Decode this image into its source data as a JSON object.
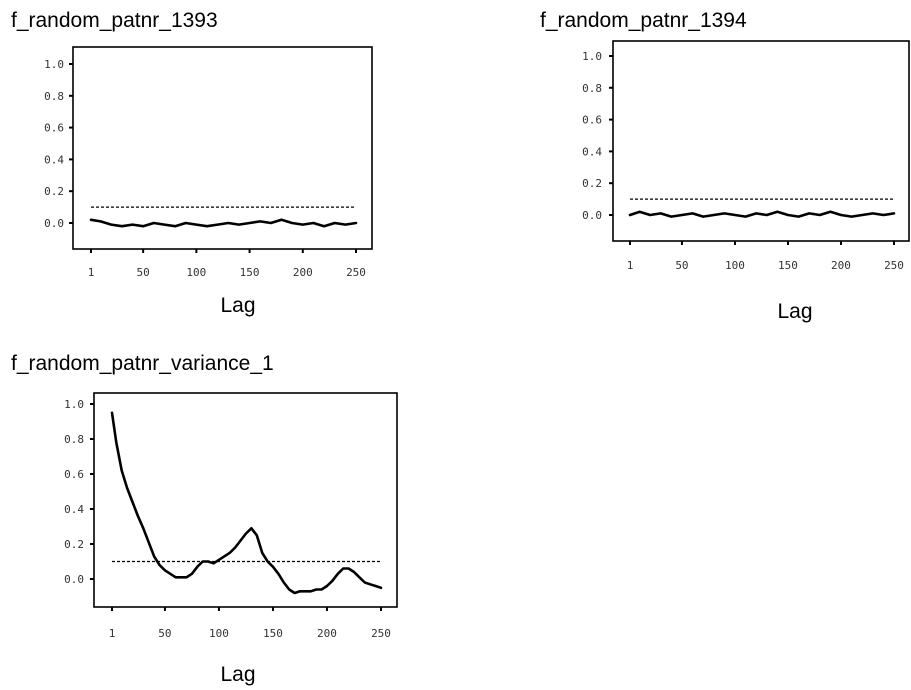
{
  "chart_data": [
    {
      "type": "line",
      "title": "f_random_patnr_1393",
      "xlabel": "Lag",
      "ylabel": "",
      "xlim": [
        1,
        250
      ],
      "ylim": [
        0.0,
        1.0
      ],
      "xticks": [
        "1",
        "50",
        "100",
        "150",
        "200",
        "250"
      ],
      "yticks": [
        "0.0",
        "0.2",
        "0.4",
        "0.6",
        "0.8",
        "1.0"
      ],
      "threshold": 0.1,
      "series": [
        {
          "x": [
            1,
            10,
            20,
            30,
            40,
            50,
            60,
            70,
            80,
            90,
            100,
            110,
            120,
            130,
            140,
            150,
            160,
            170,
            180,
            190,
            200,
            210,
            220,
            230,
            240,
            250
          ],
          "values": [
            0.02,
            0.01,
            -0.01,
            -0.02,
            -0.01,
            -0.02,
            0.0,
            -0.01,
            -0.02,
            0.0,
            -0.01,
            -0.02,
            -0.01,
            0.0,
            -0.01,
            0.0,
            0.01,
            0.0,
            0.02,
            0.0,
            -0.01,
            0.0,
            -0.02,
            0.0,
            -0.01,
            0.0
          ]
        }
      ]
    },
    {
      "type": "line",
      "title": "f_random_patnr_1394",
      "xlabel": "Lag",
      "ylabel": "",
      "xlim": [
        1,
        250
      ],
      "ylim": [
        0.0,
        1.0
      ],
      "xticks": [
        "1",
        "50",
        "100",
        "150",
        "200",
        "250"
      ],
      "yticks": [
        "0.0",
        "0.2",
        "0.4",
        "0.6",
        "0.8",
        "1.0"
      ],
      "threshold": 0.1,
      "series": [
        {
          "x": [
            1,
            10,
            20,
            30,
            40,
            50,
            60,
            70,
            80,
            90,
            100,
            110,
            120,
            130,
            140,
            150,
            160,
            170,
            180,
            190,
            200,
            210,
            220,
            230,
            240,
            250
          ],
          "values": [
            0.0,
            0.02,
            0.0,
            0.01,
            -0.01,
            0.0,
            0.01,
            -0.01,
            0.0,
            0.01,
            0.0,
            -0.01,
            0.01,
            0.0,
            0.02,
            0.0,
            -0.01,
            0.01,
            0.0,
            0.02,
            0.0,
            -0.01,
            0.0,
            0.01,
            0.0,
            0.01
          ]
        }
      ]
    },
    {
      "type": "line",
      "title": "f_random_patnr_variance_1",
      "xlabel": "Lag",
      "ylabel": "",
      "xlim": [
        1,
        250
      ],
      "ylim": [
        0.0,
        1.0
      ],
      "xticks": [
        "1",
        "50",
        "100",
        "150",
        "200",
        "250"
      ],
      "yticks": [
        "0.0",
        "0.2",
        "0.4",
        "0.6",
        "0.8",
        "1.0"
      ],
      "threshold": 0.1,
      "series": [
        {
          "x": [
            1,
            5,
            10,
            15,
            20,
            25,
            30,
            35,
            40,
            45,
            50,
            55,
            60,
            65,
            70,
            75,
            80,
            85,
            90,
            95,
            100,
            105,
            110,
            115,
            120,
            125,
            130,
            135,
            140,
            145,
            150,
            155,
            160,
            165,
            170,
            175,
            180,
            185,
            190,
            195,
            200,
            205,
            210,
            215,
            220,
            225,
            230,
            235,
            240,
            245,
            250
          ],
          "values": [
            0.95,
            0.78,
            0.62,
            0.52,
            0.44,
            0.36,
            0.29,
            0.21,
            0.13,
            0.08,
            0.05,
            0.03,
            0.01,
            0.01,
            0.01,
            0.03,
            0.07,
            0.1,
            0.1,
            0.09,
            0.11,
            0.13,
            0.15,
            0.18,
            0.22,
            0.26,
            0.29,
            0.25,
            0.15,
            0.1,
            0.07,
            0.03,
            -0.02,
            -0.06,
            -0.08,
            -0.07,
            -0.07,
            -0.07,
            -0.06,
            -0.06,
            -0.04,
            -0.01,
            0.03,
            0.06,
            0.06,
            0.04,
            0.01,
            -0.02,
            -0.03,
            -0.04,
            -0.05
          ]
        }
      ]
    }
  ]
}
